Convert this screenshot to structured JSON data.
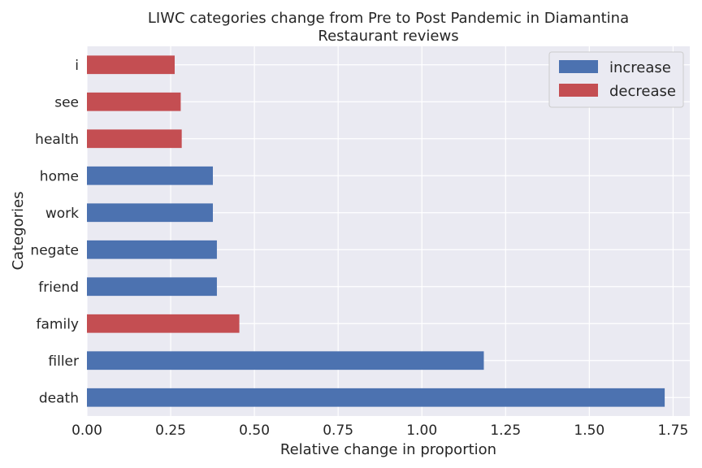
{
  "chart_data": {
    "type": "bar",
    "orientation": "horizontal",
    "title_line1": "LIWC categories change from Pre to Post Pandemic in Diamantina",
    "title_line2": "Restaurant reviews",
    "xlabel": "Relative change in proportion",
    "ylabel": "Categories",
    "xlim": [
      0,
      1.8
    ],
    "xticks": [
      "0.00",
      "0.25",
      "0.50",
      "0.75",
      "1.00",
      "1.25",
      "1.50",
      "1.75"
    ],
    "xtick_values": [
      0,
      0.25,
      0.5,
      0.75,
      1.0,
      1.25,
      1.5,
      1.75
    ],
    "grid": true,
    "legend_position": "top-right",
    "legend": [
      {
        "label": "increase",
        "color": "#4C72B0"
      },
      {
        "label": "decrease",
        "color": "#C44E52"
      }
    ],
    "categories": [
      "death",
      "filler",
      "family",
      "friend",
      "negate",
      "work",
      "home",
      "health",
      "see",
      "i"
    ],
    "values": [
      1.725,
      1.185,
      0.455,
      0.388,
      0.388,
      0.376,
      0.376,
      0.283,
      0.28,
      0.262
    ],
    "direction": [
      "increase",
      "increase",
      "decrease",
      "increase",
      "increase",
      "increase",
      "increase",
      "decrease",
      "decrease",
      "decrease"
    ],
    "colors": {
      "increase": "#4C72B0",
      "decrease": "#C44E52",
      "plot_bg": "#EAEAF2",
      "grid": "#FFFFFF"
    }
  }
}
